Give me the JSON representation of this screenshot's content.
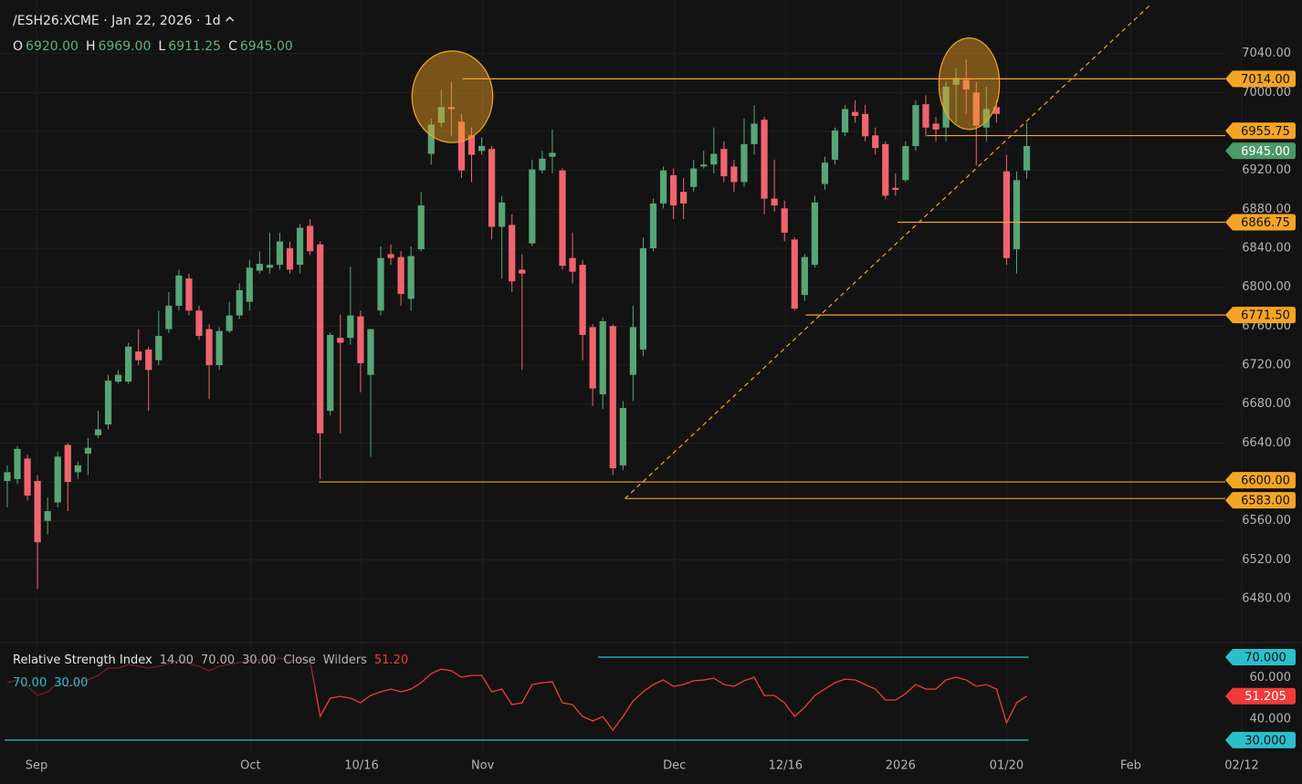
{
  "chart_data": [
    {
      "type": "candlestick",
      "title": "/ESH26:XCME · Jan 22, 2026 · 1d",
      "ohlc_legend": [
        {
          "key": "O",
          "value": "6920.00"
        },
        {
          "key": "H",
          "value": "6969.00"
        },
        {
          "key": "L",
          "value": "6911.25"
        },
        {
          "key": "C",
          "value": "6945.00"
        }
      ],
      "open": [
        6601,
        6603,
        6624,
        6601,
        6560,
        6579,
        6638,
        6610,
        6629,
        6648,
        6659,
        6703,
        6703,
        6734,
        6736,
        6725,
        6757,
        6781,
        6809,
        6776,
        6757,
        6720,
        6755,
        6771,
        6785,
        6817,
        6820,
        6823,
        6840,
        6823,
        6863,
        6844,
        6673,
        6748,
        6748,
        6770,
        6710,
        6776,
        6834,
        6831,
        6788,
        6839,
        6937,
        6969,
        6985,
        6970,
        6956,
        6940,
        6942,
        6862,
        6864,
        6818,
        6845,
        6920,
        6934,
        6920,
        6830,
        6823,
        6759,
        6690,
        6760,
        6617,
        6710,
        6736,
        6840,
        6886,
        6915,
        6898,
        6903,
        6924,
        6926,
        6942,
        6924,
        6908,
        6947,
        6972,
        6891,
        6881,
        6849,
        6792,
        6823,
        6906,
        6931,
        6959,
        6980,
        6978,
        6956,
        6947,
        6902,
        6910,
        6945,
        6988,
        6968,
        6964,
        7008,
        7013,
        7000,
        6964,
        6985,
        6919,
        6839,
        6920
      ],
      "high": [
        6617,
        6637,
        6628,
        6607,
        6584,
        6631,
        6640,
        6621,
        6645,
        6673,
        6710,
        6715,
        6743,
        6757,
        6739,
        6776,
        6795,
        6818,
        6814,
        6781,
        6762,
        6759,
        6785,
        6804,
        6828,
        6837,
        6856,
        6856,
        6847,
        6865,
        6870,
        6847,
        6753,
        6772,
        6821,
        6776,
        6757,
        6842,
        6844,
        6837,
        6842,
        6898,
        6973,
        7003,
        7011,
        6978,
        6964,
        6954,
        6945,
        6894,
        6875,
        6834,
        6931,
        6940,
        6962,
        6922,
        6856,
        6828,
        6762,
        6769,
        6762,
        6683,
        6781,
        6851,
        6891,
        6924,
        6922,
        6912,
        6931,
        6940,
        6964,
        6950,
        6931,
        6973,
        6987,
        6975,
        6931,
        6889,
        6851,
        6834,
        6894,
        6934,
        6964,
        6987,
        6992,
        6987,
        6964,
        6950,
        6917,
        6950,
        6992,
        6997,
        6975,
        7011,
        7025,
        7034,
        7011,
        7006,
        6992,
        6936,
        6919,
        6969
      ],
      "low": [
        6574,
        6598,
        6581,
        6490,
        6546,
        6574,
        6570,
        6603,
        6607,
        6645,
        6654,
        6701,
        6701,
        6720,
        6673,
        6720,
        6753,
        6776,
        6771,
        6746,
        6685,
        6715,
        6753,
        6767,
        6776,
        6814,
        6814,
        6818,
        6814,
        6814,
        6833,
        6603,
        6668,
        6650,
        6741,
        6692,
        6626,
        6771,
        6823,
        6781,
        6776,
        6837,
        6926,
        6964,
        6955,
        6912,
        6908,
        6936,
        6849,
        6809,
        6795,
        6715,
        6842,
        6917,
        6917,
        6818,
        6804,
        6725,
        6678,
        6675,
        6607,
        6612,
        6683,
        6729,
        6837,
        6881,
        6870,
        6870,
        6898,
        6922,
        6917,
        6908,
        6898,
        6903,
        6936,
        6875,
        6878,
        6847,
        6776,
        6786,
        6820,
        6900,
        6926,
        6955,
        6969,
        6950,
        6936,
        6891,
        6894,
        6908,
        6940,
        6955,
        6950,
        6950,
        6969,
        6978,
        6925,
        6950,
        6969,
        6823,
        6814,
        6911.25
      ],
      "close": [
        6610,
        6634,
        6586,
        6538,
        6570,
        6626,
        6600,
        6617,
        6635,
        6654,
        6704,
        6710,
        6739,
        6725,
        6715,
        6750,
        6781,
        6812,
        6776,
        6750,
        6720,
        6755,
        6771,
        6797,
        6820,
        6824,
        6823,
        6847,
        6818,
        6861,
        6837,
        6650,
        6751,
        6743,
        6771,
        6722,
        6757,
        6830,
        6830,
        6793,
        6832,
        6884,
        6967,
        6985,
        6983,
        6920,
        6936,
        6945,
        6862,
        6887,
        6806,
        6814,
        6921,
        6932,
        6938,
        6822,
        6816,
        6751,
        6696,
        6765,
        6614,
        6676,
        6759,
        6840,
        6886,
        6920,
        6884,
        6886,
        6922,
        6926,
        6937,
        6914,
        6908,
        6947,
        6968,
        6891,
        6884,
        6856,
        6778,
        6831,
        6887,
        6928,
        6961,
        6983,
        6976,
        6955,
        6943,
        6894,
        6900,
        6945,
        6987,
        6964,
        6962,
        7006,
        7015,
        7003,
        6966,
        6983,
        6978,
        6830,
        6910,
        6945
      ],
      "up_color": "#57a677",
      "down_color": "#f0646f",
      "xlim": [
        -0.72,
        128.27
      ],
      "xticks": [
        {
          "value": 2.9,
          "label": "Sep"
        },
        {
          "value": 24.1,
          "label": "Oct"
        },
        {
          "value": 35.1,
          "label": "10/16"
        },
        {
          "value": 47.1,
          "label": "Nov"
        },
        {
          "value": 66.1,
          "label": "Dec"
        },
        {
          "value": 77.1,
          "label": "12/16"
        },
        {
          "value": 88.5,
          "label": "2026"
        },
        {
          "value": 99.0,
          "label": "01/20"
        },
        {
          "value": 111.3,
          "label": "Feb"
        },
        {
          "value": 122.3,
          "label": "02/12"
        }
      ],
      "ylim": [
        6436,
        7095
      ],
      "yticks": [
        {
          "value": 6480,
          "label": "6480.00"
        },
        {
          "value": 6520,
          "label": "6520.00"
        },
        {
          "value": 6560,
          "label": "6560.00"
        },
        {
          "value": 6600,
          "label": "6600.00"
        },
        {
          "value": 6640,
          "label": "6640.00"
        },
        {
          "value": 6680,
          "label": "6680.00"
        },
        {
          "value": 6720,
          "label": "6720.00"
        },
        {
          "value": 6760,
          "label": "6760.00"
        },
        {
          "value": 6800,
          "label": "6800.00"
        },
        {
          "value": 6840,
          "label": "6840.00"
        },
        {
          "value": 6880,
          "label": "6880.00"
        },
        {
          "value": 6920,
          "label": "6920.00"
        },
        {
          "value": 6960,
          "label": "6960.00"
        },
        {
          "value": 7000,
          "label": "7000.00"
        },
        {
          "value": 7040,
          "label": "7040.00"
        }
      ],
      "grid": true,
      "level_color": "#f5a524",
      "levels": [
        {
          "value": 7014,
          "label": "7014.00",
          "x_start": 45.1
        },
        {
          "value": 6955.75,
          "label": "6955.75",
          "x_start": 91.1
        },
        {
          "value": 6866.75,
          "label": "6866.75",
          "x_start": 88.2
        },
        {
          "value": 6771.5,
          "label": "6771.50",
          "x_start": 79.1
        },
        {
          "value": 6600,
          "label": "6600.00",
          "x_start": 30.9
        },
        {
          "value": 6583,
          "label": "6583.00",
          "x_start": 61.2
        }
      ],
      "last_price": {
        "value": 6945,
        "label": "6945.00",
        "color": "#4a9a6a"
      },
      "trendline": {
        "x": [
          61.2,
          113.3
        ],
        "y": [
          6583,
          7090.6
        ]
      },
      "highlights": [
        {
          "x": 44.1,
          "y": 6995.6,
          "rx": 4.0,
          "ry": 47
        },
        {
          "x": 95.3,
          "y": 7009,
          "rx": 3.0,
          "ry": 47
        }
      ]
    },
    {
      "type": "line",
      "title": "Relative Strength Index",
      "params": [
        "14.00",
        "70.00",
        "30.00",
        "Close",
        "Wilders"
      ],
      "legend_value": "51.20",
      "band_legend": [
        "70.00",
        "30.00"
      ],
      "color": "#f23a3a",
      "band_color": "#2bbfcc",
      "values": [
        57.7,
        59.0,
        55.9,
        51.5,
        53.3,
        57.7,
        55.9,
        57.7,
        59.0,
        61.2,
        64.7,
        64.7,
        66.5,
        65.6,
        64.7,
        65.6,
        66.9,
        68.2,
        66.9,
        65.6,
        63.4,
        65.6,
        66.5,
        67.4,
        68.2,
        68.7,
        68.7,
        69.6,
        68.2,
        69.1,
        68.2,
        41.4,
        50.2,
        51.1,
        50.2,
        48.0,
        51.5,
        53.3,
        54.6,
        53.3,
        54.6,
        57.7,
        62.1,
        64.3,
        63.4,
        60.3,
        61.2,
        61.2,
        53.3,
        54.6,
        47.1,
        48.0,
        56.8,
        57.7,
        58.1,
        48.0,
        47.1,
        41.4,
        39.2,
        41.4,
        34.8,
        41.4,
        48.9,
        53.3,
        56.8,
        59.0,
        55.9,
        56.8,
        58.6,
        59.0,
        59.9,
        56.8,
        55.9,
        58.6,
        60.3,
        51.5,
        51.5,
        48.0,
        41.4,
        45.8,
        51.5,
        54.6,
        57.7,
        59.4,
        59.0,
        56.8,
        54.6,
        49.3,
        49.3,
        52.4,
        56.8,
        54.6,
        54.6,
        59.0,
        60.3,
        59.0,
        55.9,
        56.8,
        54.6,
        38.3,
        48.0,
        51.205
      ],
      "last_label": "51.205",
      "ylim": [
        26,
        76.6
      ],
      "yticks": [
        {
          "value": 70,
          "label": "70.000",
          "band": true
        },
        {
          "value": 60,
          "label": "60.000"
        },
        {
          "value": 40,
          "label": "40.000"
        },
        {
          "value": 30,
          "label": "30.000",
          "band": true
        }
      ]
    }
  ]
}
